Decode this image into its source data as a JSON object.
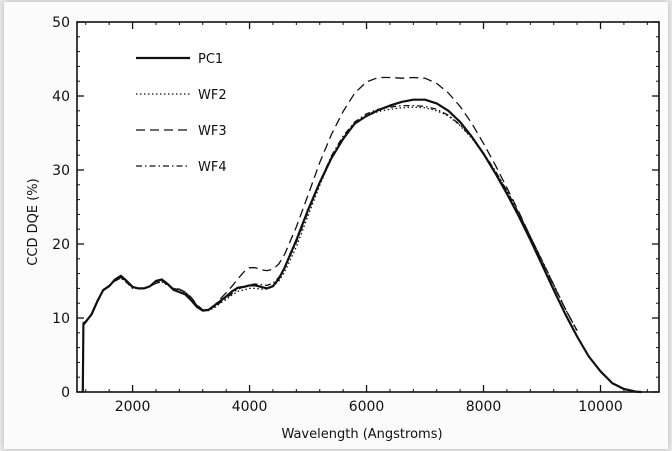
{
  "chart_data": {
    "type": "line",
    "title": "",
    "xlabel": "Wavelength (Angstroms)",
    "ylabel": "CCD DQE (%)",
    "xlim": [
      1050,
      11000
    ],
    "ylim": [
      0,
      50
    ],
    "xticks": [
      2000,
      4000,
      6000,
      8000,
      10000
    ],
    "yticks": [
      0,
      10,
      20,
      30,
      40,
      50
    ],
    "grid": false,
    "legend_position": "top-left",
    "series": [
      {
        "name": "PC1",
        "style": "solid",
        "color": "#111111",
        "x": [
          1150,
          1160,
          1200,
          1300,
          1400,
          1500,
          1600,
          1700,
          1800,
          1900,
          2000,
          2100,
          2200,
          2300,
          2400,
          2500,
          2600,
          2700,
          2800,
          2900,
          3000,
          3100,
          3200,
          3300,
          3400,
          3500,
          3600,
          3700,
          3800,
          3900,
          4000,
          4100,
          4200,
          4300,
          4400,
          4500,
          4600,
          4800,
          5000,
          5200,
          5400,
          5600,
          5800,
          6000,
          6200,
          6400,
          6600,
          6800,
          7000,
          7200,
          7400,
          7600,
          7800,
          8000,
          8200,
          8400,
          8600,
          8800,
          9000,
          9200,
          9400,
          9600,
          9800,
          10000,
          10200,
          10400,
          10600,
          10700
        ],
        "y": [
          0,
          9.3,
          9.5,
          10.5,
          12.3,
          13.8,
          14.3,
          15.2,
          15.7,
          15.0,
          14.2,
          14.0,
          14.0,
          14.3,
          15.0,
          15.2,
          14.6,
          13.8,
          13.5,
          13.2,
          12.4,
          11.5,
          11.0,
          11.1,
          11.7,
          12.3,
          12.9,
          13.6,
          14.1,
          14.2,
          14.4,
          14.4,
          14.2,
          14.0,
          14.3,
          15.3,
          16.8,
          20.5,
          24.6,
          28.3,
          31.6,
          34.2,
          36.3,
          37.3,
          38.1,
          38.7,
          39.2,
          39.5,
          39.5,
          39.0,
          38.0,
          36.5,
          34.5,
          32.2,
          29.6,
          26.8,
          23.8,
          20.6,
          17.2,
          13.8,
          10.5,
          7.5,
          4.8,
          2.8,
          1.2,
          0.4,
          0.05,
          0
        ]
      },
      {
        "name": "WF2",
        "style": "dotted",
        "color": "#111111",
        "x": [
          1160,
          1200,
          1300,
          1400,
          1500,
          1600,
          1700,
          1800,
          1900,
          2000,
          2100,
          2200,
          2300,
          2400,
          2500,
          2600,
          2700,
          2800,
          2900,
          3000,
          3100,
          3200,
          3300,
          3400,
          3500,
          3600,
          3700,
          3800,
          3900,
          4000,
          4100,
          4200,
          4300,
          4400,
          4500,
          4600,
          4800,
          5000,
          5200,
          5400,
          5600,
          5800,
          6000,
          6200,
          6400,
          6600,
          6800,
          7000,
          7200,
          7400,
          7600,
          7800,
          8000,
          8200,
          8400,
          8600,
          8800,
          9000,
          9200,
          9400,
          9600
        ],
        "y": [
          9.0,
          9.4,
          10.6,
          12.4,
          13.7,
          14.4,
          15.1,
          15.4,
          14.8,
          14.1,
          14.0,
          14.0,
          14.3,
          14.7,
          14.9,
          14.4,
          13.9,
          13.8,
          13.4,
          12.6,
          11.6,
          11.0,
          11.0,
          11.4,
          12.0,
          12.5,
          13.1,
          13.6,
          13.8,
          14.0,
          14.0,
          13.9,
          13.9,
          14.3,
          15.0,
          16.2,
          19.6,
          23.8,
          27.9,
          31.6,
          34.3,
          36.2,
          37.3,
          37.9,
          38.2,
          38.4,
          38.5,
          38.4,
          38.0,
          37.3,
          36.0,
          34.3,
          32.2,
          29.9,
          27.2,
          24.2,
          21.0,
          17.8,
          14.5,
          11.2,
          8.2
        ]
      },
      {
        "name": "WF3",
        "style": "dashed",
        "color": "#111111",
        "x": [
          1160,
          1200,
          1300,
          1400,
          1500,
          1600,
          1700,
          1800,
          1900,
          2000,
          2100,
          2200,
          2300,
          2400,
          2500,
          2600,
          2700,
          2800,
          2900,
          3000,
          3100,
          3200,
          3300,
          3400,
          3500,
          3600,
          3700,
          3800,
          3900,
          4000,
          4100,
          4200,
          4300,
          4400,
          4500,
          4600,
          4800,
          5000,
          5200,
          5400,
          5600,
          5800,
          6000,
          6200,
          6400,
          6600,
          6800,
          7000,
          7200,
          7400,
          7600,
          7800,
          8000,
          8200,
          8400,
          8600,
          8800,
          9000,
          9200,
          9400,
          9600
        ],
        "y": [
          9.0,
          9.4,
          10.6,
          12.4,
          13.8,
          14.4,
          15.1,
          15.5,
          14.9,
          14.1,
          14.0,
          14.0,
          14.3,
          14.7,
          14.9,
          14.5,
          14.0,
          13.9,
          13.5,
          12.8,
          11.8,
          11.1,
          11.1,
          11.7,
          12.6,
          13.4,
          14.3,
          15.3,
          16.2,
          16.8,
          16.8,
          16.5,
          16.4,
          16.6,
          17.3,
          18.6,
          22.3,
          26.6,
          31.0,
          34.8,
          37.9,
          40.4,
          41.9,
          42.5,
          42.5,
          42.4,
          42.5,
          42.4,
          41.7,
          40.4,
          38.6,
          36.3,
          33.6,
          30.7,
          27.6,
          24.4,
          21.0,
          17.7,
          14.4,
          11.2,
          8.3
        ]
      },
      {
        "name": "WF4",
        "style": "dash-dot",
        "color": "#111111",
        "x": [
          1160,
          1200,
          1300,
          1400,
          1500,
          1600,
          1700,
          1800,
          1900,
          2000,
          2100,
          2200,
          2300,
          2400,
          2500,
          2600,
          2700,
          2800,
          2900,
          3000,
          3100,
          3200,
          3300,
          3400,
          3500,
          3600,
          3700,
          3800,
          3900,
          4000,
          4100,
          4200,
          4300,
          4400,
          4500,
          4600,
          4800,
          5000,
          5200,
          5400,
          5600,
          5800,
          6000,
          6200,
          6400,
          6600,
          6800,
          7000,
          7200,
          7400,
          7600,
          7800,
          8000,
          8200,
          8400,
          8600,
          8800,
          9000,
          9200,
          9400,
          9600
        ],
        "y": [
          9.0,
          9.4,
          10.6,
          12.4,
          13.7,
          14.3,
          15.0,
          15.4,
          14.8,
          14.0,
          14.0,
          14.1,
          14.3,
          14.8,
          15.0,
          14.5,
          14.0,
          13.8,
          13.5,
          12.7,
          11.7,
          11.1,
          11.1,
          11.5,
          12.1,
          12.7,
          13.3,
          13.9,
          14.2,
          14.5,
          14.6,
          14.5,
          14.4,
          14.7,
          15.5,
          16.7,
          20.2,
          24.3,
          28.3,
          31.9,
          34.6,
          36.5,
          37.6,
          38.2,
          38.5,
          38.7,
          38.7,
          38.6,
          38.2,
          37.4,
          36.1,
          34.4,
          32.3,
          29.9,
          27.2,
          24.2,
          21.0,
          17.8,
          14.5,
          11.2,
          8.3
        ]
      }
    ]
  }
}
